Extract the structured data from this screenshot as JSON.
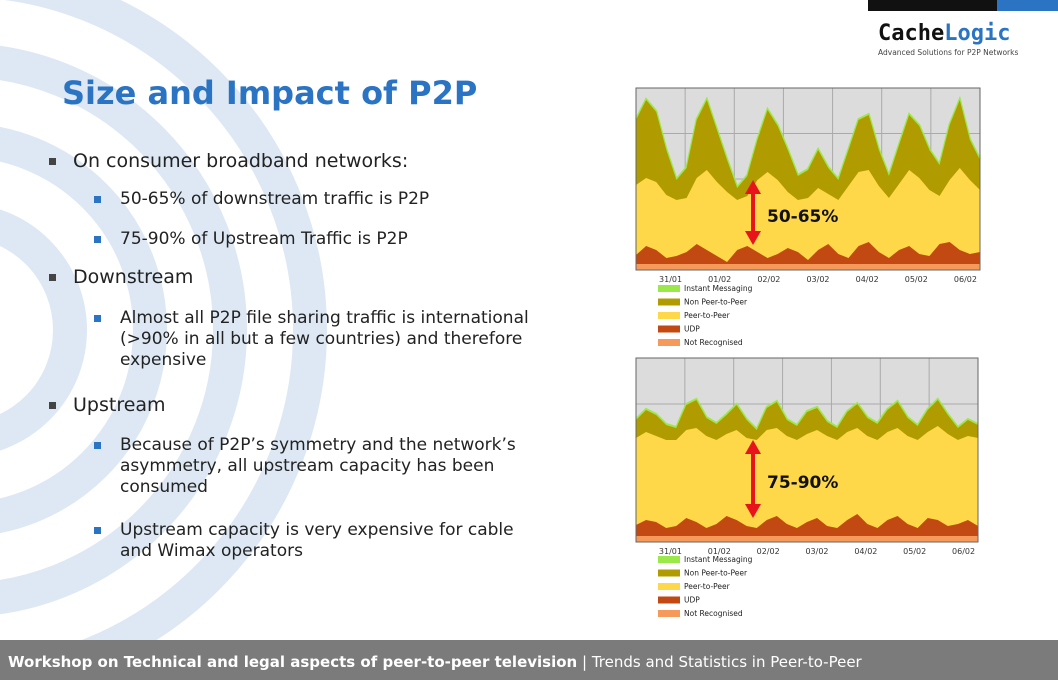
{
  "logo": {
    "name_first": "Cache",
    "name_second": "Logic",
    "tagline": "Advanced Solutions for P2P Networks"
  },
  "title": "Size and Impact of P2P",
  "bullets": [
    {
      "text": "On consumer broadband networks:",
      "children": [
        "50-65% of downstream traffic is P2P",
        "75-90% of Upstream Traffic is P2P"
      ]
    },
    {
      "text": "Downstream",
      "children": [
        "Almost all P2P file sharing traffic is international (>90% in all but a few countries) and therefore expensive"
      ]
    },
    {
      "text": "Upstream",
      "children": [
        "Because of P2P’s symmetry and the network’s asymmetry, all upstream capacity has been consumed",
        "Upstream capacity is very expensive for cable and Wimax operators"
      ]
    }
  ],
  "charts": [
    {
      "x_labels": [
        "31/01",
        "01/02",
        "02/02",
        "03/02",
        "04/02",
        "05/02",
        "06/02"
      ],
      "legend": [
        "Instant Messaging",
        "Non Peer-to-Peer",
        "Peer-to-Peer",
        "UDP",
        "Not Recognised"
      ],
      "annotation": "50-65%"
    },
    {
      "x_labels": [
        "31/01",
        "01/02",
        "02/02",
        "03/02",
        "04/02",
        "05/02",
        "06/02"
      ],
      "legend": [
        "Instant Messaging",
        "Non Peer-to-Peer",
        "Peer-to-Peer",
        "UDP",
        "Not Recognised"
      ],
      "annotation": "75-90%"
    }
  ],
  "footer": {
    "main": "Workshop on Technical and legal aspects of peer-to-peer television",
    "separator": "|",
    "section": "Trends and Statistics in Peer-to-Peer"
  }
}
